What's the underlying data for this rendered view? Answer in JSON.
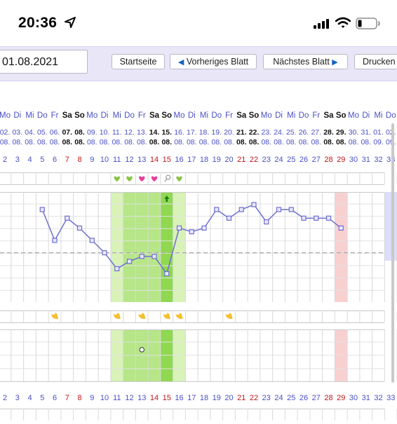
{
  "status_bar": {
    "time": "20:36",
    "icons": [
      "location-arrow-icon",
      "cellular-signal-icon",
      "wifi-icon",
      "battery-low-icon"
    ]
  },
  "toolbar": {
    "date_value": "01.08.2021",
    "home_label": "Startseite",
    "prev_label": "Vorheriges Blatt",
    "next_label": "Nächstes Blatt",
    "print_label": "Drucken",
    "prev_icon": "chevron-left-icon",
    "next_icon": "chevron-right-icon"
  },
  "colors": {
    "weekday": "#4a4fc4",
    "weekend": "#111111",
    "cycle_day": "#4a4fc4",
    "cycle_day_weekend": "#c0161b",
    "fertile_light": "#d8f2b8",
    "fertile_mid": "#b6e687",
    "fertile_peak": "#8fd84f",
    "period_day": "#f9d0d0",
    "curve": "#6f6fcf",
    "accent": "#e9e6f8"
  },
  "cycle": {
    "weekdays": [
      "Mo",
      "Di",
      "Mi",
      "Do",
      "Fr",
      "Sa",
      "So",
      "Mo",
      "Di",
      "Mi",
      "Do",
      "Fr",
      "Sa",
      "So",
      "Mo",
      "Di",
      "Mi",
      "Do",
      "Fr",
      "Sa",
      "So",
      "Mo",
      "Di",
      "Mi",
      "Do",
      "Fr",
      "Sa",
      "So",
      "Mo",
      "Di",
      "Mi",
      "Do"
    ],
    "dates_top": [
      "02.",
      "03.",
      "04.",
      "05.",
      "06.",
      "07.",
      "08.",
      "09.",
      "10.",
      "11.",
      "12.",
      "13.",
      "14.",
      "15.",
      "16.",
      "17.",
      "18.",
      "19.",
      "20.",
      "21.",
      "22.",
      "23.",
      "24.",
      "25.",
      "26.",
      "27.",
      "28.",
      "29.",
      "30.",
      "31.",
      "01.",
      "02."
    ],
    "dates_bottom": [
      "08.",
      "08.",
      "08.",
      "08.",
      "08.",
      "08.",
      "08.",
      "08.",
      "08.",
      "08.",
      "08.",
      "08.",
      "08.",
      "08.",
      "08.",
      "08.",
      "08.",
      "08.",
      "08.",
      "08.",
      "08.",
      "08.",
      "08.",
      "08.",
      "08.",
      "08.",
      "08.",
      "08.",
      "08.",
      "08.",
      "09.",
      "09."
    ],
    "day_numbers": [
      "2",
      "3",
      "4",
      "5",
      "6",
      "7",
      "8",
      "9",
      "10",
      "11",
      "12",
      "13",
      "14",
      "15",
      "16",
      "17",
      "18",
      "19",
      "20",
      "21",
      "22",
      "23",
      "24",
      "25",
      "26",
      "27",
      "28",
      "29",
      "30",
      "31",
      "32",
      "33"
    ],
    "weekend_flags": [
      0,
      0,
      0,
      0,
      0,
      1,
      1,
      0,
      0,
      0,
      0,
      0,
      1,
      1,
      0,
      0,
      0,
      0,
      0,
      1,
      1,
      0,
      0,
      0,
      0,
      0,
      1,
      1,
      0,
      0,
      0,
      0
    ],
    "temperature_level": [
      null,
      null,
      null,
      7.5,
      5,
      6.8,
      6,
      5,
      4,
      2.7,
      3.3,
      3.7,
      3.7,
      2.3,
      6,
      5.7,
      6,
      7.5,
      6.8,
      7.5,
      7.9,
      6.5,
      7.5,
      7.5,
      6.8,
      6.8,
      6.8,
      6,
      null,
      null,
      null,
      null
    ],
    "coverline_level": 4,
    "love_marks": [
      {
        "day": "11",
        "color": "#8bc34a"
      },
      {
        "day": "12",
        "color": "#8bc34a"
      },
      {
        "day": "13",
        "color": "#e83e9a"
      },
      {
        "day": "14",
        "color": "#e83e9a"
      },
      {
        "day": "16",
        "color": "#8bc34a"
      }
    ],
    "ovulation_arrow_day": "15",
    "ovulation_test_day": "15",
    "mucus_marks": [
      "6",
      "11",
      "13",
      "15",
      "16",
      "20"
    ],
    "cervix_point_day": "13",
    "fertile_days": {
      "light": [
        "11",
        "16"
      ],
      "mid": [
        "12",
        "13",
        "14"
      ],
      "peak": [
        "15"
      ]
    },
    "period_day": "29",
    "future_box_from_day": "33"
  }
}
